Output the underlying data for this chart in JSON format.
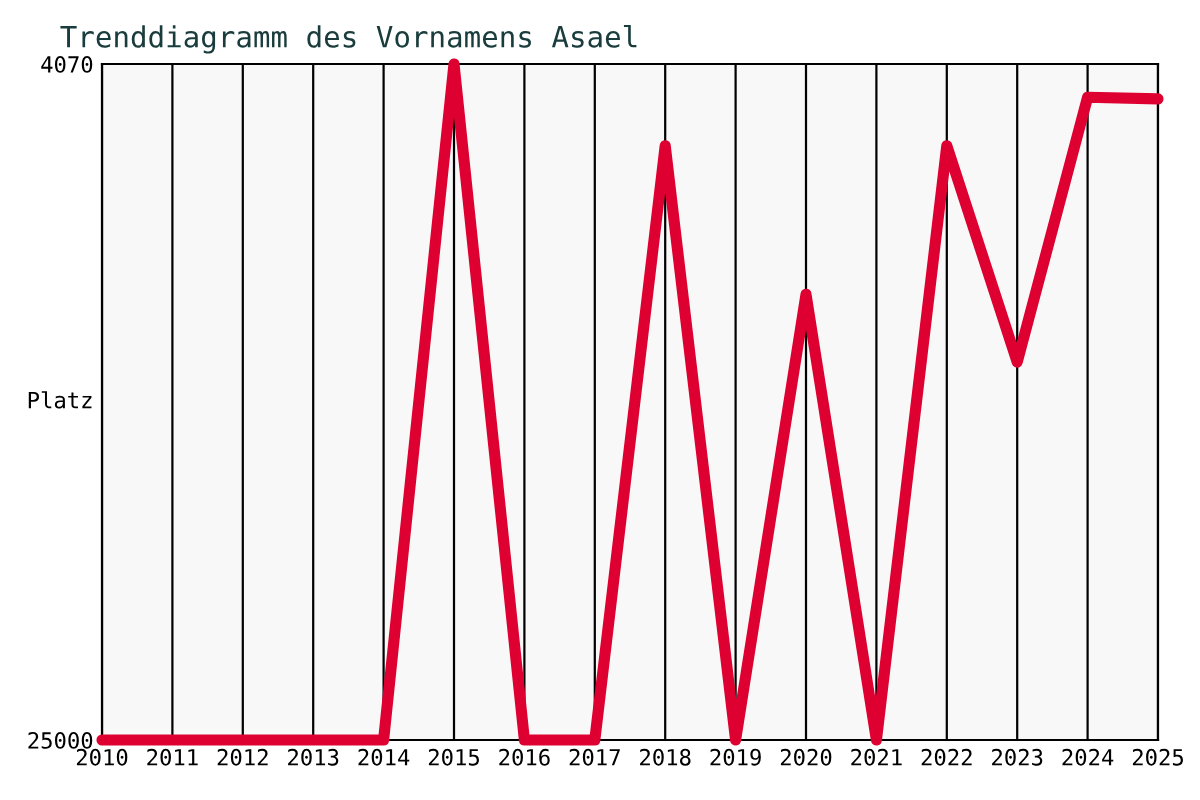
{
  "chart_data": {
    "type": "line",
    "title": "Trenddiagramm des Vornamens Asael",
    "ylabel": "Platz",
    "x": [
      2010,
      2011,
      2012,
      2013,
      2014,
      2015,
      2016,
      2017,
      2018,
      2019,
      2020,
      2021,
      2022,
      2023,
      2024,
      2025
    ],
    "series": [
      {
        "color": "#dd0030",
        "values": [
          25000,
          25000,
          25000,
          25000,
          25000,
          4070,
          25000,
          25000,
          6600,
          25000,
          11200,
          25000,
          6600,
          13300,
          5100,
          5150
        ]
      }
    ],
    "xlim": [
      2010,
      2025
    ],
    "xticks": [
      2010,
      2011,
      2012,
      2013,
      2014,
      2015,
      2016,
      2017,
      2018,
      2019,
      2020,
      2021,
      2022,
      2023,
      2024,
      2025
    ],
    "ylim": [
      25000,
      4070
    ],
    "yticks": [
      4070,
      25000
    ],
    "grid": "x",
    "legend": false,
    "marker": "none",
    "line_style": "solid"
  }
}
